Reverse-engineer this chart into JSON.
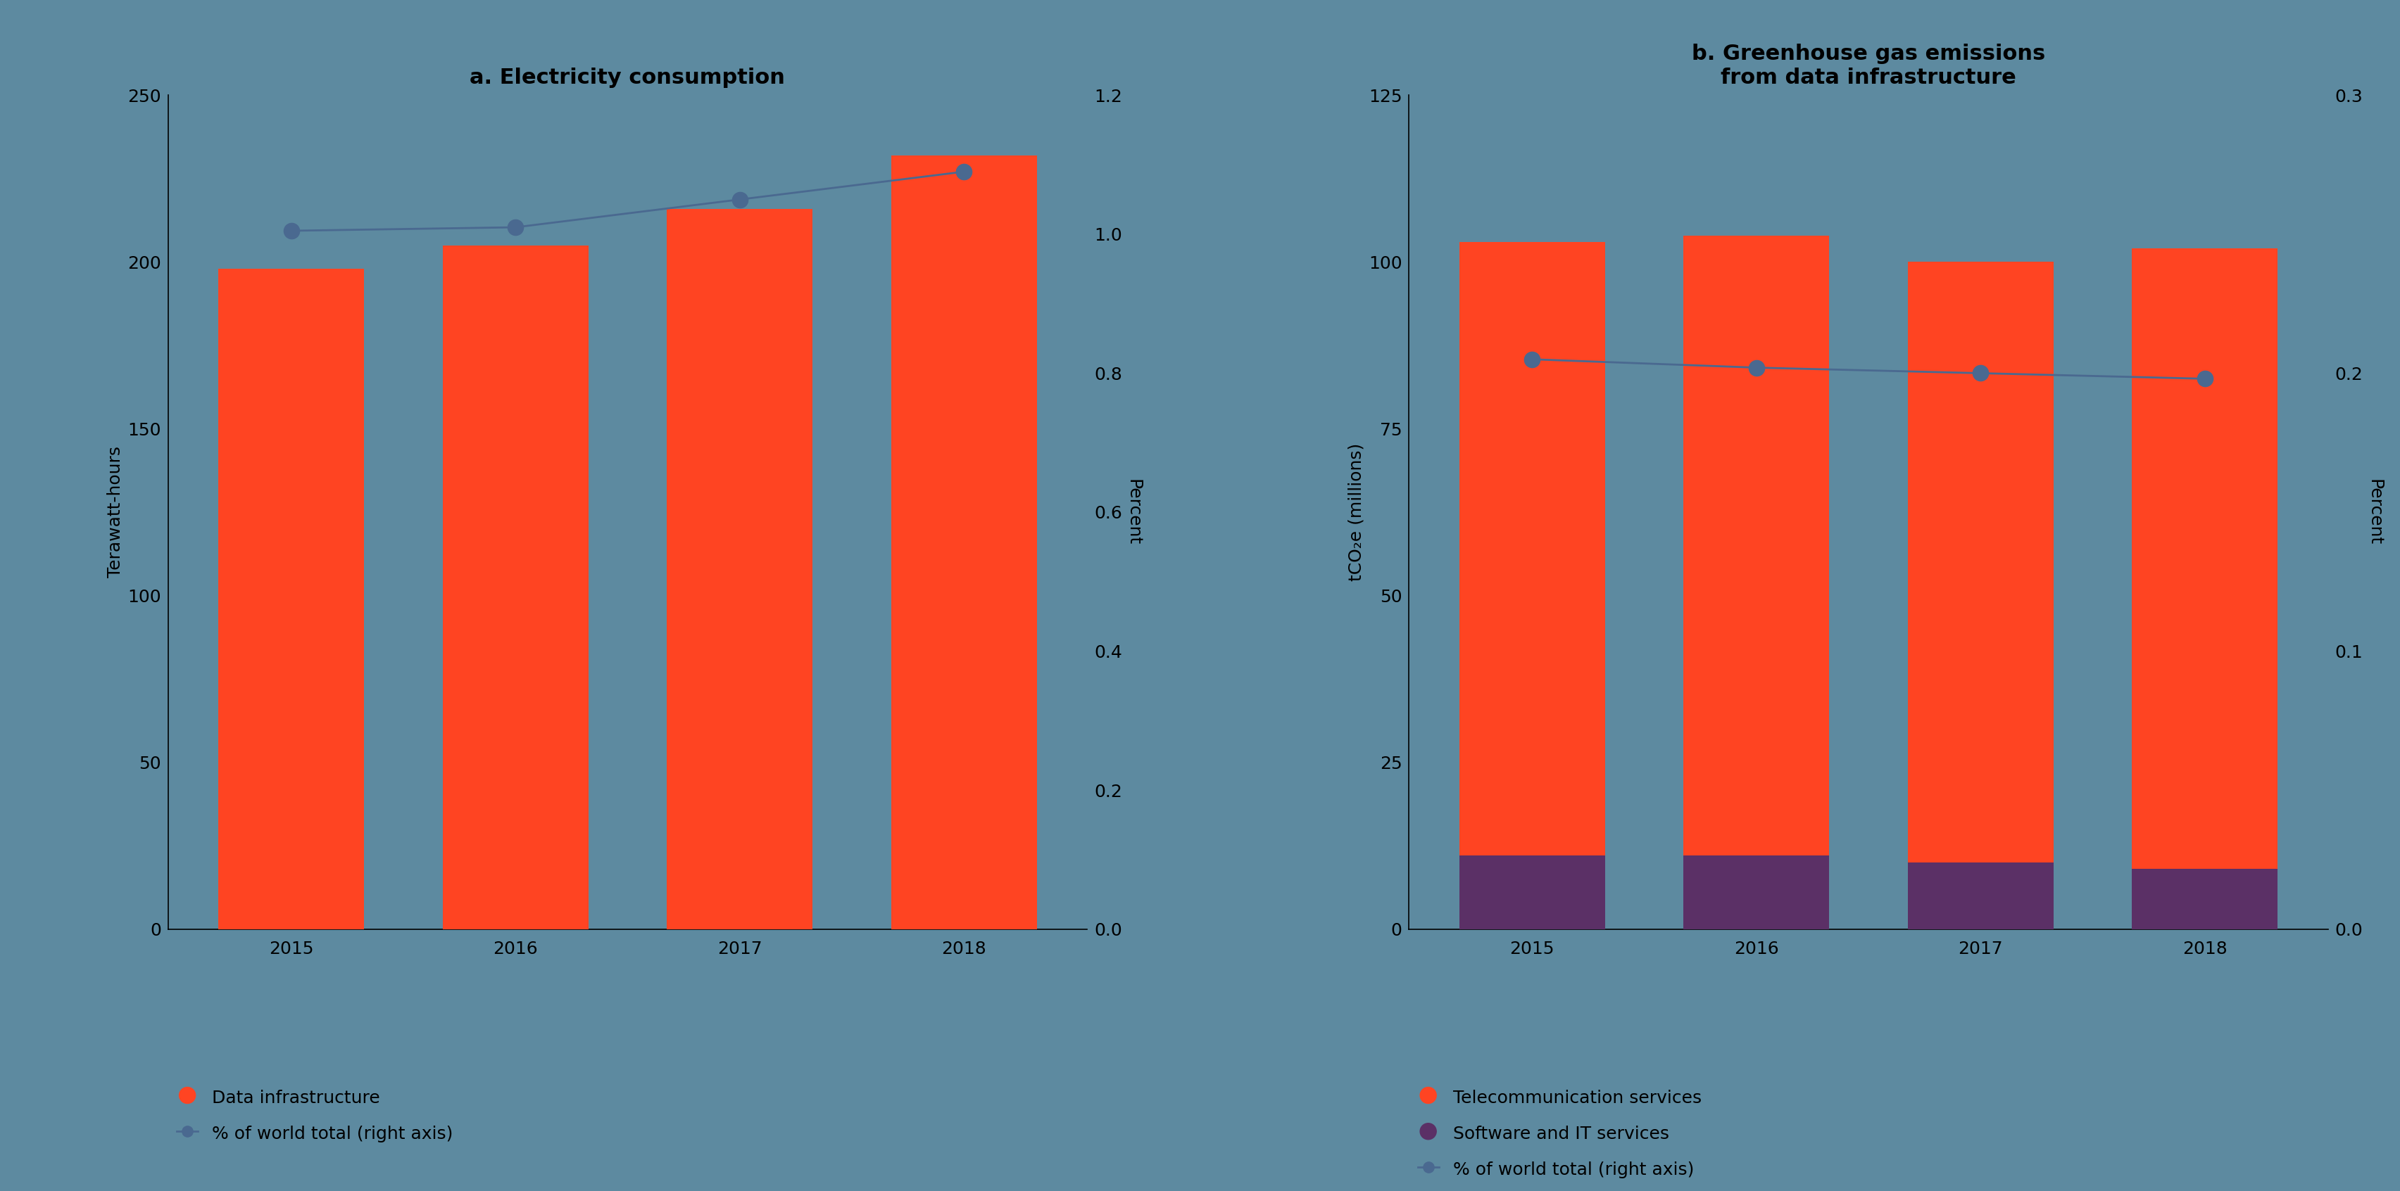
{
  "chart_a": {
    "title": "a. Electricity consumption",
    "years": [
      2015,
      2016,
      2017,
      2018
    ],
    "bar_values": [
      198,
      205,
      216,
      232
    ],
    "line_values": [
      1.005,
      1.01,
      1.05,
      1.09
    ],
    "bar_color": "#FF4422",
    "line_color": "#4A6990",
    "ylabel_left": "Terawatt-hours",
    "ylabel_right": "Percent",
    "ylim_left": [
      0,
      250
    ],
    "ylim_right": [
      0,
      1.2
    ],
    "yticks_left": [
      0,
      50,
      100,
      150,
      200,
      250
    ],
    "yticks_right": [
      0,
      0.2,
      0.4,
      0.6,
      0.8,
      1.0,
      1.2
    ],
    "legend_bar": "Data infrastructure",
    "legend_line": "% of world total (right axis)"
  },
  "chart_b": {
    "title": "b. Greenhouse gas emissions\nfrom data infrastructure",
    "years": [
      2015,
      2016,
      2017,
      2018
    ],
    "bar_telecom": [
      92,
      93,
      90,
      93
    ],
    "bar_software": [
      11,
      11,
      10,
      9
    ],
    "line_values": [
      0.205,
      0.202,
      0.2,
      0.198
    ],
    "bar_color_telecom": "#FF4422",
    "bar_color_software": "#5B3066",
    "line_color": "#4A6990",
    "ylabel_left": "tCO₂e (millions)",
    "ylabel_right": "Percent",
    "ylim_left": [
      0,
      125
    ],
    "ylim_right": [
      0,
      0.3
    ],
    "yticks_left": [
      0,
      25,
      50,
      75,
      100,
      125
    ],
    "yticks_right": [
      0,
      0.1,
      0.2,
      0.3
    ],
    "legend_telecom": "Telecommunication services",
    "legend_software": "Software and IT services",
    "legend_line": "% of world total (right axis)"
  },
  "bg_color": "#5D8AA0",
  "text_color": "#000000",
  "title_fontsize": 22,
  "label_fontsize": 18,
  "tick_fontsize": 18,
  "legend_fontsize": 18,
  "bar_width": 0.65
}
